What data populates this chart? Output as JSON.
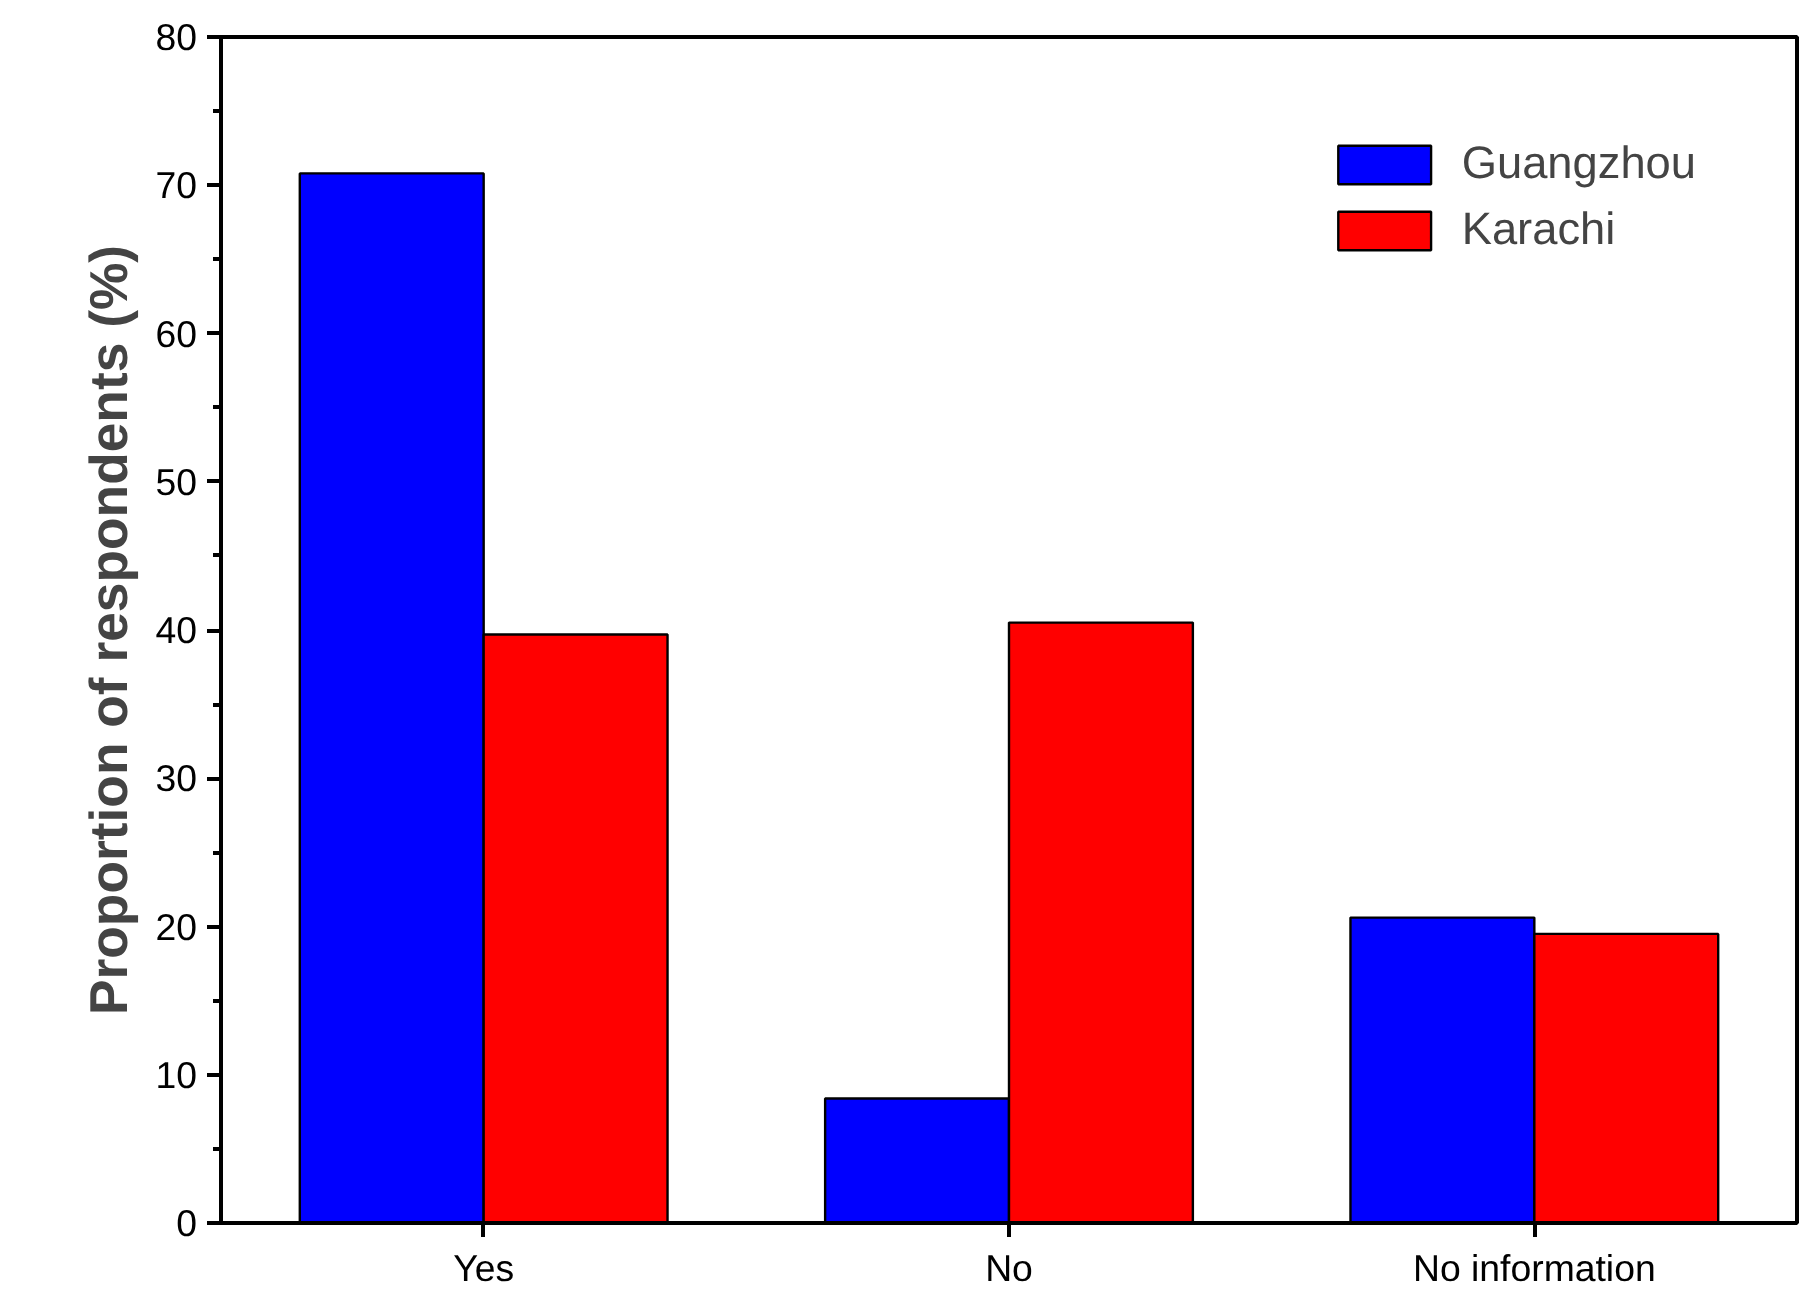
{
  "chart_data": {
    "type": "bar",
    "ylabel": "Proportion of respondents (%)",
    "categories": [
      "Yes",
      "No",
      "No information"
    ],
    "series": [
      {
        "name": "Guangzhou",
        "color": "#0000ff",
        "values": [
          70.8,
          8.4,
          20.6
        ]
      },
      {
        "name": "Karachi",
        "color": "#ff0000",
        "values": [
          39.7,
          40.5,
          19.5
        ]
      }
    ],
    "ylim": [
      0,
      80
    ],
    "yticks": [
      0,
      10,
      20,
      30,
      40,
      50,
      60,
      70,
      80
    ],
    "grid": false,
    "legend": "top right"
  }
}
